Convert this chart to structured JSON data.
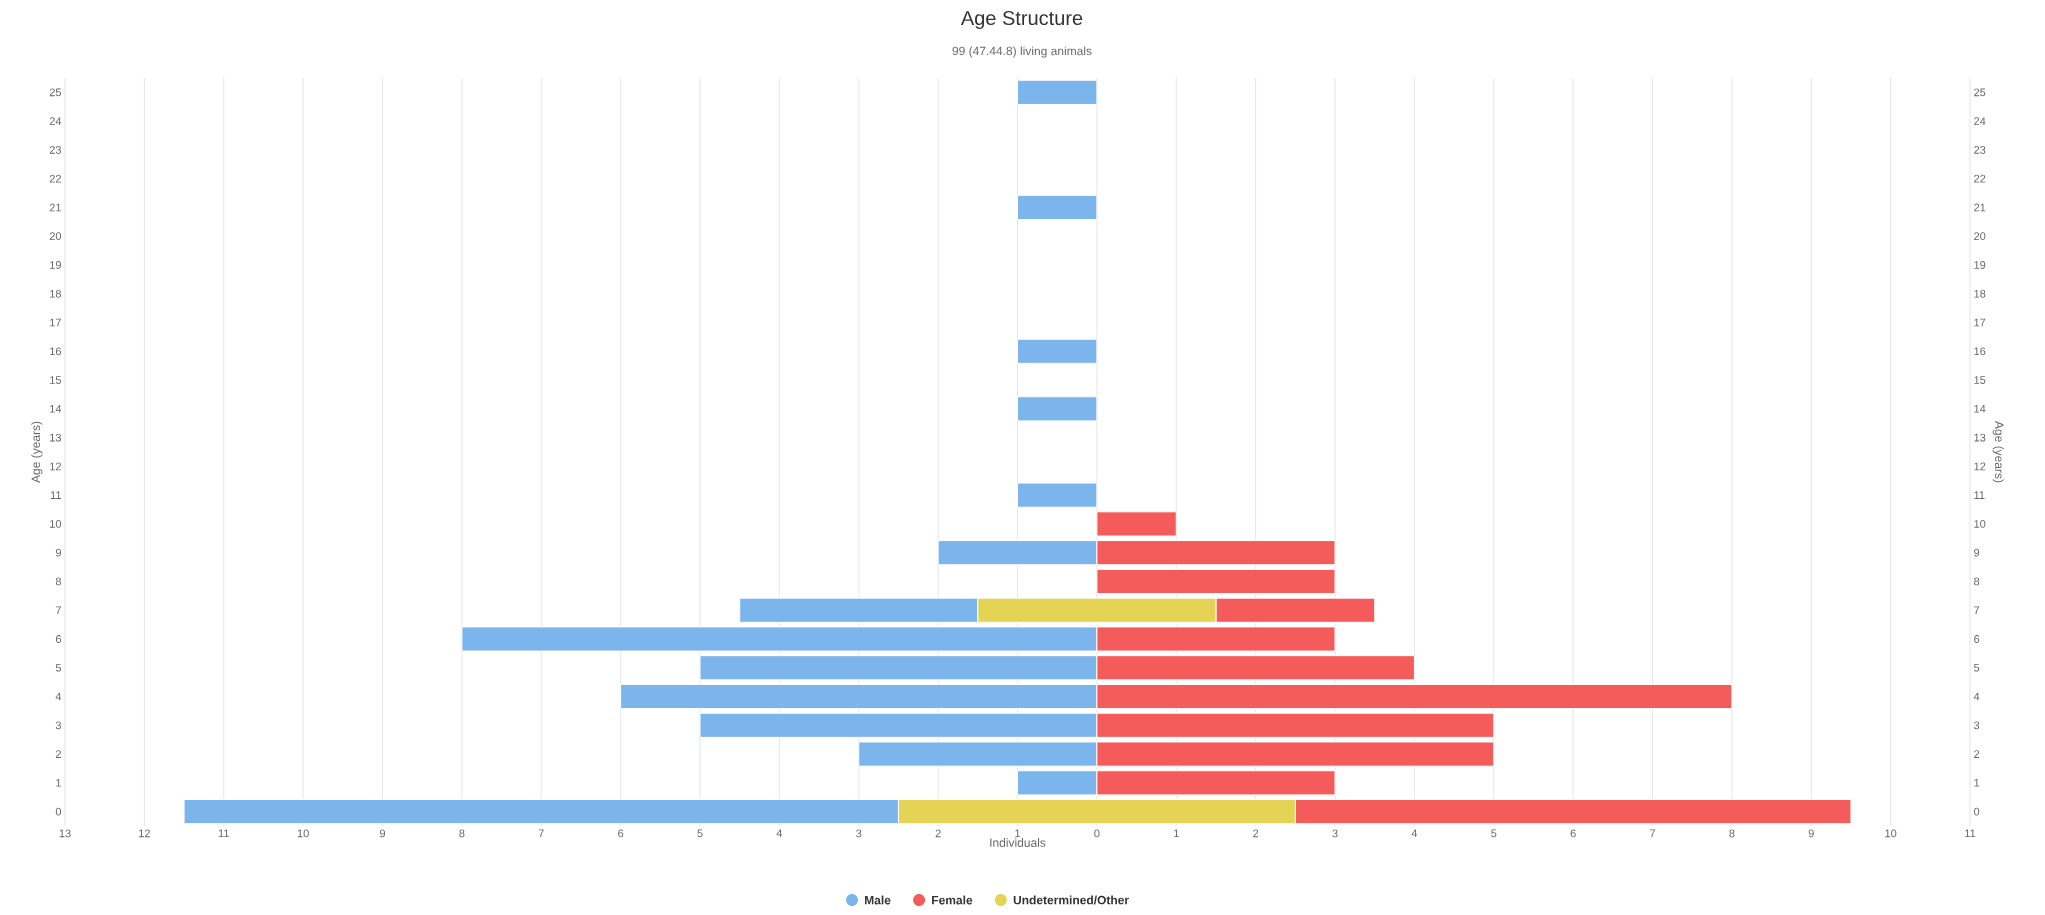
{
  "chart_data": {
    "type": "bar",
    "orientation": "horizontal",
    "title": "Age Structure",
    "subtitle": "99 (47.44.8) living animals",
    "xlabel": "Individuals",
    "ylabel": "Age (years)",
    "y2label": "Age (years)",
    "categories": [
      "25",
      "24",
      "23",
      "22",
      "21",
      "20",
      "19",
      "18",
      "17",
      "16",
      "15",
      "14",
      "13",
      "12",
      "11",
      "10",
      "9",
      "8",
      "7",
      "6",
      "5",
      "4",
      "3",
      "2",
      "1",
      "0"
    ],
    "series": [
      {
        "name": "Male",
        "color": "#7cb5ec",
        "values": [
          -1,
          null,
          null,
          null,
          -1,
          null,
          null,
          null,
          null,
          -1,
          null,
          -1,
          null,
          null,
          -1,
          null,
          -2,
          null,
          -3,
          -8,
          -5,
          -6,
          -5,
          -3,
          -1,
          -9
        ],
        "base": [
          0,
          null,
          null,
          null,
          0,
          null,
          null,
          null,
          null,
          0,
          null,
          0,
          null,
          null,
          0,
          null,
          0,
          null,
          -1.5,
          0,
          0,
          0,
          0,
          0,
          0,
          -2.5
        ]
      },
      {
        "name": "Female",
        "color": "#f45b5b",
        "values": [
          null,
          null,
          null,
          null,
          null,
          null,
          null,
          null,
          null,
          null,
          null,
          null,
          null,
          null,
          null,
          1,
          3,
          3,
          2,
          3,
          4,
          8,
          5,
          5,
          3,
          7
        ],
        "base": [
          null,
          null,
          null,
          null,
          null,
          null,
          null,
          null,
          null,
          null,
          null,
          null,
          null,
          null,
          null,
          0,
          0,
          0,
          1.5,
          0,
          0,
          0,
          0,
          0,
          0,
          2.5
        ]
      },
      {
        "name": "Undetermined/Other",
        "color": "#e4d354",
        "values": [
          null,
          null,
          null,
          null,
          null,
          null,
          null,
          null,
          null,
          null,
          null,
          null,
          null,
          null,
          null,
          null,
          null,
          null,
          3,
          null,
          null,
          null,
          null,
          null,
          null,
          5
        ],
        "base": [
          null,
          null,
          null,
          null,
          null,
          null,
          null,
          null,
          null,
          null,
          null,
          null,
          null,
          null,
          null,
          null,
          null,
          null,
          -1.5,
          null,
          null,
          null,
          null,
          null,
          null,
          -2.5
        ]
      }
    ],
    "xlim": [
      -13,
      11
    ],
    "xticks": [
      {
        "value": -13,
        "label": "13"
      },
      {
        "value": -12,
        "label": "12"
      },
      {
        "value": -11,
        "label": "11"
      },
      {
        "value": -10,
        "label": "10"
      },
      {
        "value": -9,
        "label": "9"
      },
      {
        "value": -8,
        "label": "8"
      },
      {
        "value": -7,
        "label": "7"
      },
      {
        "value": -6,
        "label": "6"
      },
      {
        "value": -5,
        "label": "5"
      },
      {
        "value": -4,
        "label": "4"
      },
      {
        "value": -3,
        "label": "3"
      },
      {
        "value": -2,
        "label": "2"
      },
      {
        "value": -1,
        "label": "1"
      },
      0,
      1,
      2,
      3,
      4,
      5,
      6,
      7,
      8,
      9,
      10,
      11
    ],
    "grid": "x",
    "legend": "bottom"
  }
}
